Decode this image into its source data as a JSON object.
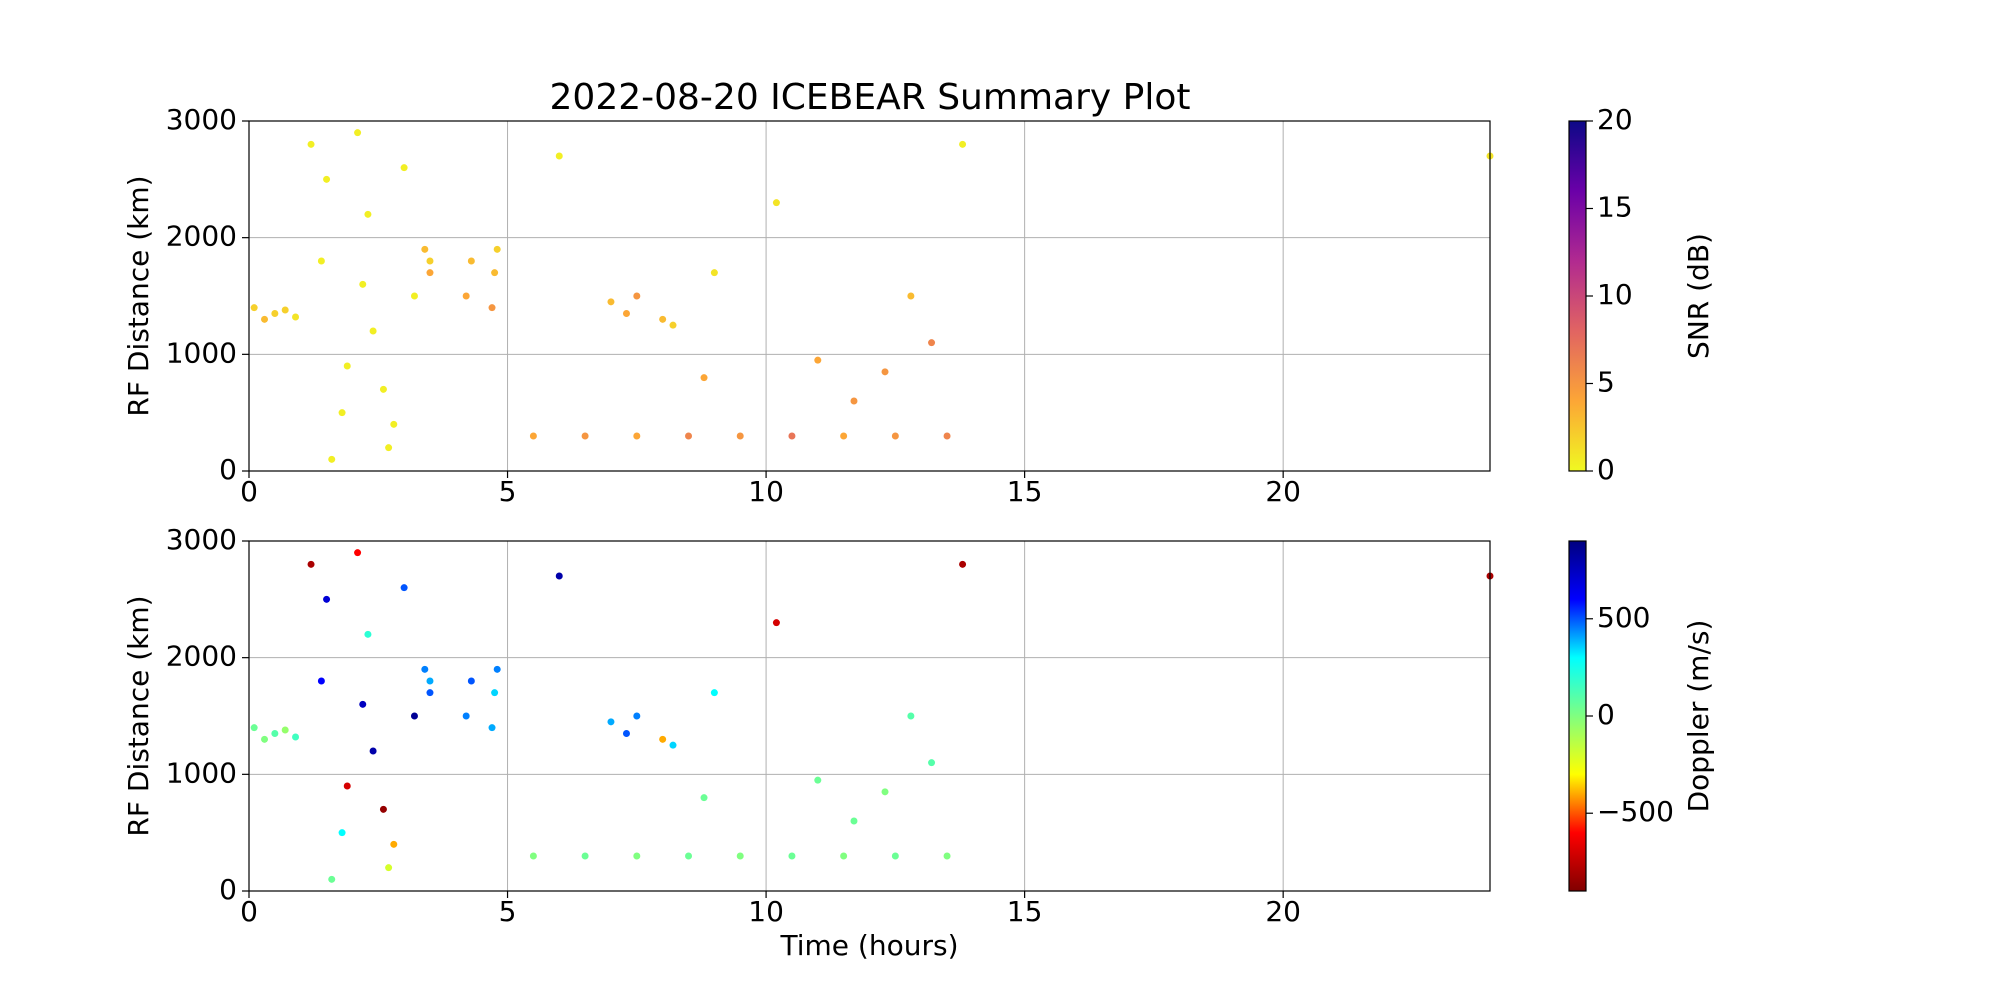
{
  "chart_data": [
    {
      "type": "scatter",
      "title": "2022-08-20 ICEBEAR Summary Plot",
      "y_label": "RF Distance (km)",
      "xlim": [
        0,
        24
      ],
      "xticks": [
        0,
        5,
        10,
        15,
        20
      ],
      "ylim": [
        0,
        3000
      ],
      "yticks": [
        0,
        1000,
        2000,
        3000
      ],
      "grid": true,
      "x": [
        0.1,
        0.3,
        0.5,
        0.7,
        0.9,
        1.2,
        1.5,
        1.8,
        2.1,
        2.4,
        2.7,
        3.0,
        1.4,
        1.9,
        2.3,
        2.8,
        3.2,
        1.6,
        2.2,
        2.6,
        3.4,
        3.5,
        3.5,
        4.2,
        4.3,
        4.7,
        4.75,
        4.8,
        5.5,
        6.5,
        7.5,
        8.5,
        9.5,
        10.5,
        11.5,
        12.5,
        13.5,
        7.0,
        7.3,
        7.5,
        8.0,
        8.2,
        6.0,
        8.8,
        10.2,
        11.7,
        12.8,
        13.8,
        9.0,
        11.0,
        12.3,
        13.2,
        24.0
      ],
      "y": [
        1400,
        1300,
        1350,
        1380,
        1320,
        2800,
        2500,
        500,
        2900,
        1200,
        200,
        2600,
        1800,
        900,
        2200,
        400,
        1500,
        100,
        1600,
        700,
        1900,
        1700,
        1800,
        1500,
        1800,
        1400,
        1700,
        1900,
        300,
        300,
        300,
        300,
        300,
        300,
        300,
        300,
        300,
        1450,
        1350,
        1500,
        1300,
        1250,
        2700,
        800,
        2300,
        600,
        1500,
        2800,
        1700,
        950,
        850,
        1100,
        2700
      ],
      "c": [
        2,
        3,
        2,
        2,
        1,
        0.5,
        0.5,
        0.5,
        0.5,
        0.5,
        0.5,
        0.5,
        0.5,
        0.5,
        0.5,
        0.5,
        0.5,
        0.5,
        0.5,
        0.5,
        3,
        4,
        2,
        4,
        3,
        5,
        3,
        2,
        4,
        5,
        4,
        6,
        5,
        7,
        4,
        5,
        6,
        3,
        4,
        5,
        3,
        2,
        0.5,
        4,
        1,
        5,
        3,
        0.5,
        1,
        4,
        5,
        6,
        1
      ],
      "colorbar_label": "SNR (dB)",
      "clim": [
        0,
        20
      ],
      "cticks": [
        0,
        5,
        10,
        15,
        20
      ],
      "colormap": [
        "#f0f921",
        "#fca636",
        "#e16462",
        "#b12a90",
        "#6a00a8",
        "#0d0887"
      ]
    },
    {
      "type": "scatter",
      "y_label": "RF Distance (km)",
      "x_label": "Time (hours)",
      "xlim": [
        0,
        24
      ],
      "xticks": [
        0,
        5,
        10,
        15,
        20
      ],
      "ylim": [
        0,
        3000
      ],
      "yticks": [
        0,
        1000,
        2000,
        3000
      ],
      "grid": true,
      "x": [
        0.1,
        0.3,
        0.5,
        0.7,
        0.9,
        1.2,
        1.5,
        1.8,
        2.1,
        2.4,
        2.7,
        3.0,
        1.4,
        1.9,
        2.3,
        2.8,
        3.2,
        1.6,
        2.2,
        2.6,
        3.4,
        3.5,
        3.5,
        4.2,
        4.3,
        4.7,
        4.75,
        4.8,
        5.5,
        6.5,
        7.5,
        8.5,
        9.5,
        10.5,
        11.5,
        12.5,
        13.5,
        7.0,
        7.3,
        7.5,
        8.0,
        8.2,
        6.0,
        8.8,
        10.2,
        11.7,
        12.8,
        13.8,
        9.0,
        11.0,
        12.3,
        13.2,
        24.0
      ],
      "y": [
        1400,
        1300,
        1350,
        1380,
        1320,
        2800,
        2500,
        500,
        2900,
        1200,
        200,
        2600,
        1800,
        900,
        2200,
        400,
        1500,
        100,
        1600,
        700,
        1900,
        1700,
        1800,
        1500,
        1800,
        1400,
        1700,
        1900,
        300,
        300,
        300,
        300,
        300,
        300,
        300,
        300,
        300,
        1450,
        1350,
        1500,
        1300,
        1250,
        2700,
        800,
        2300,
        600,
        1500,
        2800,
        1700,
        950,
        850,
        1100,
        2700
      ],
      "c": [
        50,
        0,
        100,
        -50,
        150,
        -800,
        700,
        300,
        -600,
        800,
        -200,
        500,
        600,
        -700,
        200,
        -400,
        850,
        50,
        750,
        -850,
        450,
        500,
        400,
        450,
        500,
        400,
        350,
        450,
        0,
        50,
        0,
        50,
        0,
        50,
        0,
        50,
        0,
        400,
        500,
        450,
        -400,
        350,
        800,
        50,
        -700,
        50,
        100,
        -800,
        300,
        50,
        0,
        100,
        -800
      ],
      "colorbar_label": "Doppler (m/s)",
      "clim": [
        -900,
        900
      ],
      "cticks": [
        {
          "value": -500,
          "label": "−500"
        },
        0,
        500
      ],
      "colormap": [
        "#800000",
        "#ff0000",
        "#ffff00",
        "#80ff80",
        "#00ffff",
        "#0000ff",
        "#000080"
      ]
    }
  ]
}
